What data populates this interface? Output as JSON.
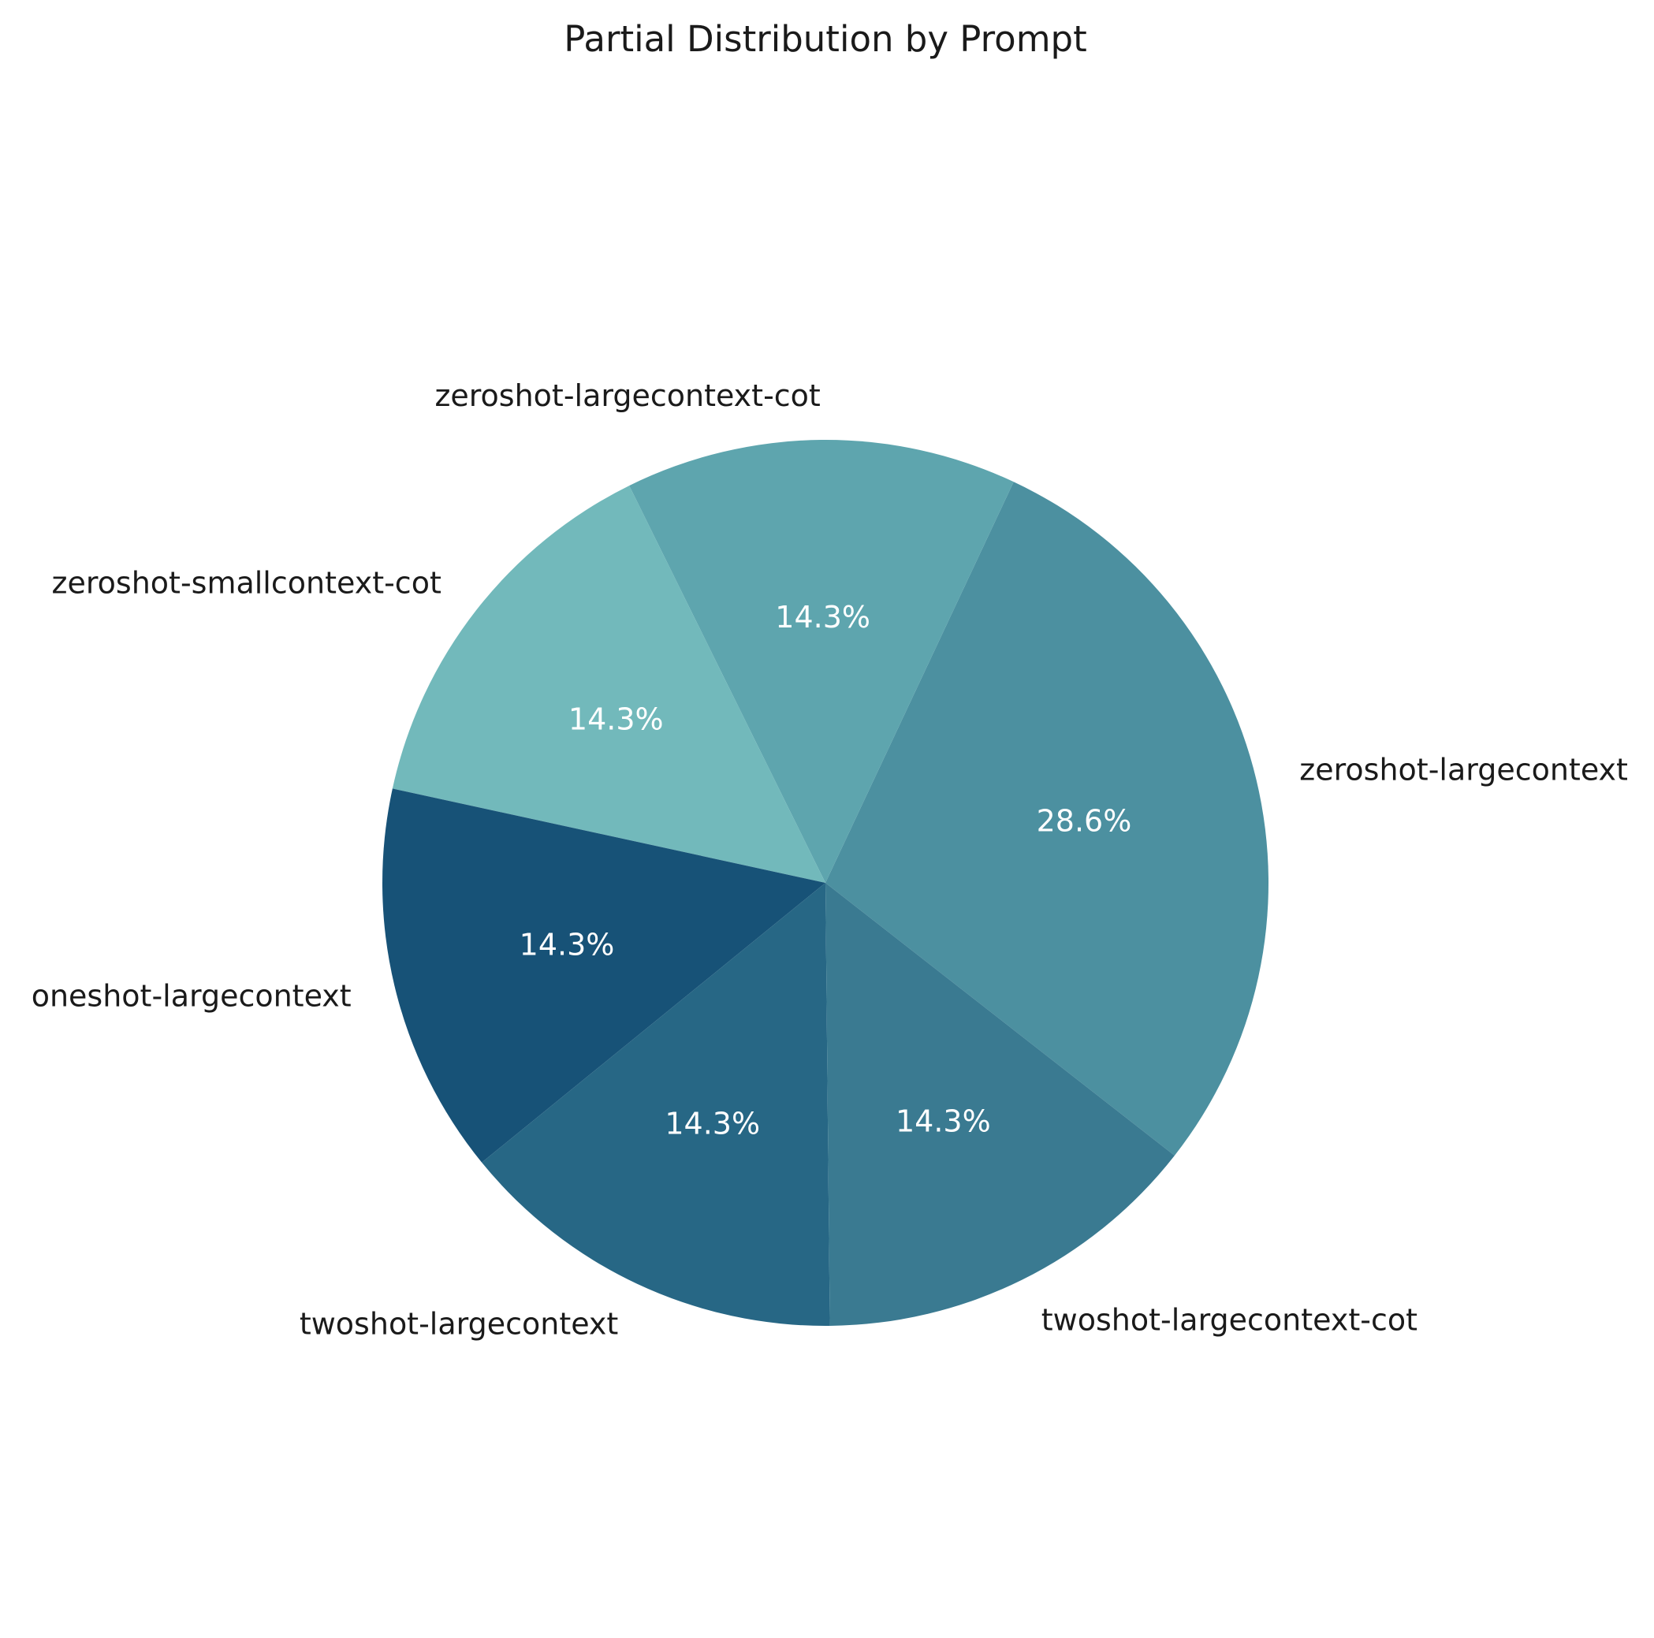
{
  "chart_data": {
    "type": "pie",
    "title": "Partial Distribution by Prompt",
    "slices": [
      {
        "label": "zeroshot-largecontext",
        "value": 28.6,
        "pct_label": "28.6%",
        "color": "#4c90a0"
      },
      {
        "label": "zeroshot-largecontext-cot",
        "value": 14.3,
        "pct_label": "14.3%",
        "color": "#5ea5ae"
      },
      {
        "label": "zeroshot-smallcontext-cot",
        "value": 14.3,
        "pct_label": "14.3%",
        "color": "#72b9bb"
      },
      {
        "label": "oneshot-largecontext",
        "value": 14.3,
        "pct_label": "14.3%",
        "color": "#175277"
      },
      {
        "label": "twoshot-largecontext",
        "value": 14.3,
        "pct_label": "14.3%",
        "color": "#276785"
      },
      {
        "label": "twoshot-largecontext-cot",
        "value": 14.3,
        "pct_label": "14.3%",
        "color": "#3a7a91"
      }
    ],
    "direction": "counterclockwise",
    "legend": "none"
  }
}
